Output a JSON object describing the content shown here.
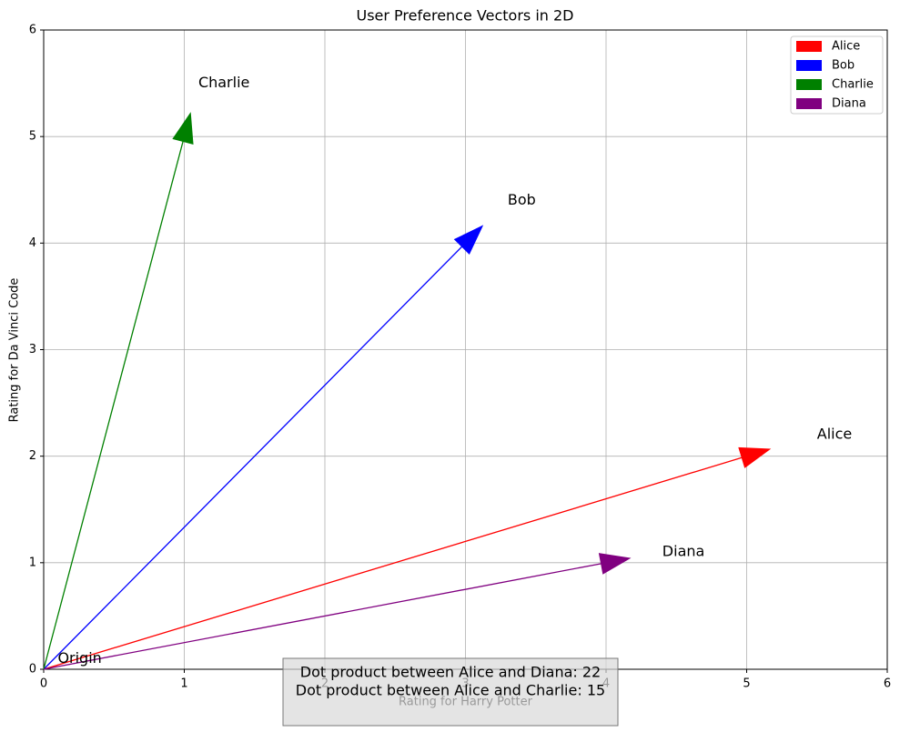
{
  "chart_data": {
    "type": "vector",
    "title": "User Preference Vectors in 2D",
    "x_label": "Rating for Harry Potter",
    "y_label": "Rating for Da Vinci Code",
    "series": [
      {
        "name": "Alice",
        "color": "#ff0000",
        "x": [
          5
        ],
        "values": [
          2
        ]
      },
      {
        "name": "Bob",
        "color": "#0000ff",
        "x": [
          3
        ],
        "values": [
          4
        ]
      },
      {
        "name": "Charlie",
        "color": "#008000",
        "x": [
          1
        ],
        "values": [
          5
        ]
      },
      {
        "name": "Diana",
        "color": "#800080",
        "x": [
          4
        ],
        "values": [
          1
        ]
      }
    ],
    "origin_label": "Origin",
    "text_box": [
      "Dot product between Alice and Diana: 22",
      "Dot product between Alice and Charlie: 15"
    ],
    "xlim": [
      0,
      6
    ],
    "ylim": [
      0,
      6
    ],
    "xticks": [
      0,
      1,
      2,
      3,
      4,
      5,
      6
    ],
    "yticks": [
      0,
      1,
      2,
      3,
      4,
      5,
      6
    ],
    "grid": true,
    "legend": "upper right"
  }
}
